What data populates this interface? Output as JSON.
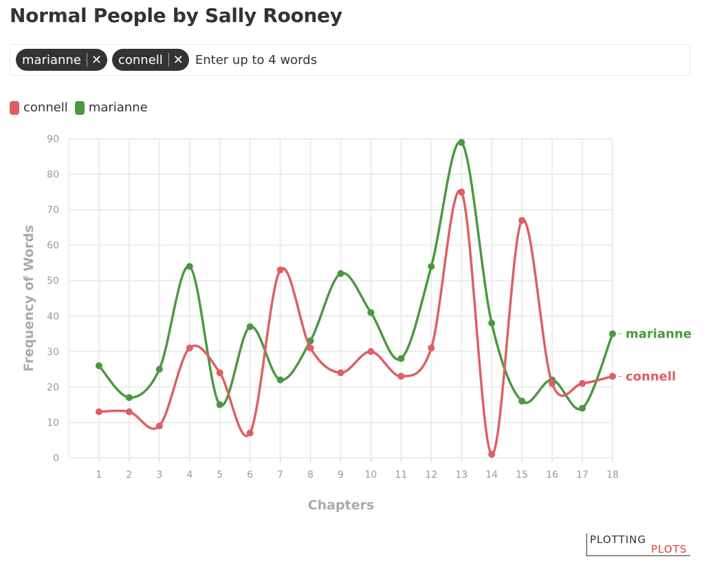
{
  "title": "Normal People by Sally Rooney",
  "word_input": {
    "tags": [
      {
        "label": "marianne"
      },
      {
        "label": "connell"
      }
    ],
    "remove_glyph": "✕",
    "placeholder": "Enter up to 4 words"
  },
  "logo": {
    "line1": "PLOTTING",
    "line2": "PLOTS"
  },
  "chart_data": {
    "type": "line",
    "title": "",
    "xlabel": "Chapters",
    "ylabel": "Frequency of Words",
    "x": [
      1,
      2,
      3,
      4,
      5,
      6,
      7,
      8,
      9,
      10,
      11,
      12,
      13,
      14,
      15,
      16,
      17,
      18
    ],
    "ylim": [
      0,
      90
    ],
    "yticks": [
      0,
      10,
      20,
      30,
      40,
      50,
      60,
      70,
      80,
      90
    ],
    "grid": true,
    "legend_position": "top-left",
    "series": [
      {
        "name": "connell",
        "color": "#dd5f64",
        "values": [
          13,
          13,
          9,
          31,
          24,
          7,
          53,
          31,
          24,
          30,
          23,
          31,
          75,
          1,
          67,
          21,
          21,
          23
        ]
      },
      {
        "name": "marianne",
        "color": "#4a983f",
        "values": [
          26,
          17,
          25,
          54,
          15,
          37,
          22,
          33,
          52,
          41,
          28,
          54,
          89,
          38,
          16,
          22,
          14,
          35
        ]
      }
    ]
  }
}
